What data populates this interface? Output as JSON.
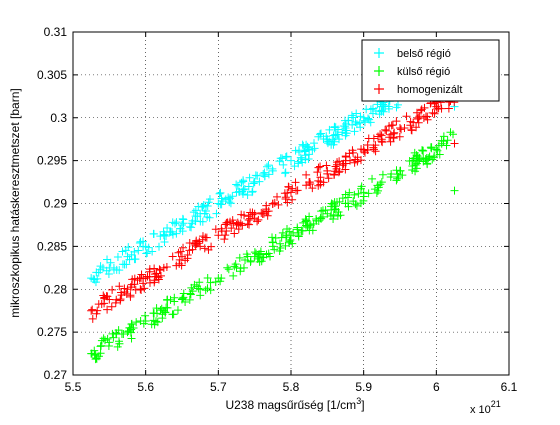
{
  "chart_data": {
    "type": "scatter",
    "marker": "+",
    "xlabel": "U238  magsűrűség [1/cm",
    "xlabel_sup": "3",
    "xlabel_end": "]",
    "x_multiplier_base": "x 10",
    "x_multiplier_exp": "21",
    "ylabel": "mikroszkopikus hatáskeresztmetszet [barn]",
    "xlim": [
      5.5,
      6.1
    ],
    "ylim": [
      0.27,
      0.31
    ],
    "x_ticks": [
      {
        "value": 5.5,
        "label": "5.5"
      },
      {
        "value": 5.6,
        "label": "5.6"
      },
      {
        "value": 5.7,
        "label": "5.7"
      },
      {
        "value": 5.8,
        "label": "5.8"
      },
      {
        "value": 5.9,
        "label": "5.9"
      },
      {
        "value": 6.0,
        "label": "6"
      },
      {
        "value": 6.1,
        "label": "6.1"
      }
    ],
    "y_ticks": [
      {
        "value": 0.27,
        "label": "0.27"
      },
      {
        "value": 0.275,
        "label": "0.275"
      },
      {
        "value": 0.28,
        "label": "0.28"
      },
      {
        "value": 0.285,
        "label": "0.285"
      },
      {
        "value": 0.29,
        "label": "0.29"
      },
      {
        "value": 0.295,
        "label": "0.295"
      },
      {
        "value": 0.3,
        "label": "0.3"
      },
      {
        "value": 0.305,
        "label": "0.305"
      },
      {
        "value": 0.31,
        "label": "0.31"
      }
    ],
    "grid": true,
    "grid_style": "dotted",
    "legend_position": "top-right",
    "series": [
      {
        "name": "belső régió",
        "color": "#00ffff",
        "x": [
          5.525,
          5.55,
          5.575,
          5.6,
          5.625,
          5.65,
          5.675,
          5.7,
          5.725,
          5.75,
          5.775,
          5.8,
          5.825,
          5.85,
          5.875,
          5.9,
          5.925,
          5.95,
          5.975,
          6.0,
          6.025
        ],
        "y": [
          0.2813,
          0.2825,
          0.2838,
          0.285,
          0.2863,
          0.2875,
          0.2888,
          0.29,
          0.2913,
          0.2925,
          0.2938,
          0.295,
          0.2963,
          0.2975,
          0.2988,
          0.3,
          0.3013,
          0.3025,
          0.3038,
          0.305,
          0.3013
        ]
      },
      {
        "name": "külső régió",
        "color": "#00ff00",
        "x": [
          5.525,
          5.55,
          5.575,
          5.6,
          5.625,
          5.65,
          5.675,
          5.7,
          5.725,
          5.75,
          5.775,
          5.8,
          5.825,
          5.85,
          5.875,
          5.9,
          5.925,
          5.95,
          5.975,
          6.0,
          6.025
        ],
        "y": [
          0.2725,
          0.2738,
          0.275,
          0.2763,
          0.2775,
          0.2788,
          0.28,
          0.2813,
          0.2825,
          0.2838,
          0.285,
          0.2863,
          0.2875,
          0.2888,
          0.29,
          0.2913,
          0.2925,
          0.2938,
          0.295,
          0.2963,
          0.2915
        ]
      },
      {
        "name": "homogenizált",
        "color": "#ff0000",
        "x": [
          5.525,
          5.55,
          5.575,
          5.6,
          5.625,
          5.65,
          5.675,
          5.7,
          5.725,
          5.75,
          5.775,
          5.8,
          5.825,
          5.85,
          5.875,
          5.9,
          5.925,
          5.95,
          5.975,
          6.0,
          6.025
        ],
        "y": [
          0.2775,
          0.2788,
          0.28,
          0.2813,
          0.2825,
          0.2838,
          0.285,
          0.2863,
          0.2875,
          0.2888,
          0.29,
          0.2913,
          0.2925,
          0.2938,
          0.295,
          0.2963,
          0.2975,
          0.2988,
          0.3,
          0.3013,
          0.297
        ]
      }
    ]
  }
}
